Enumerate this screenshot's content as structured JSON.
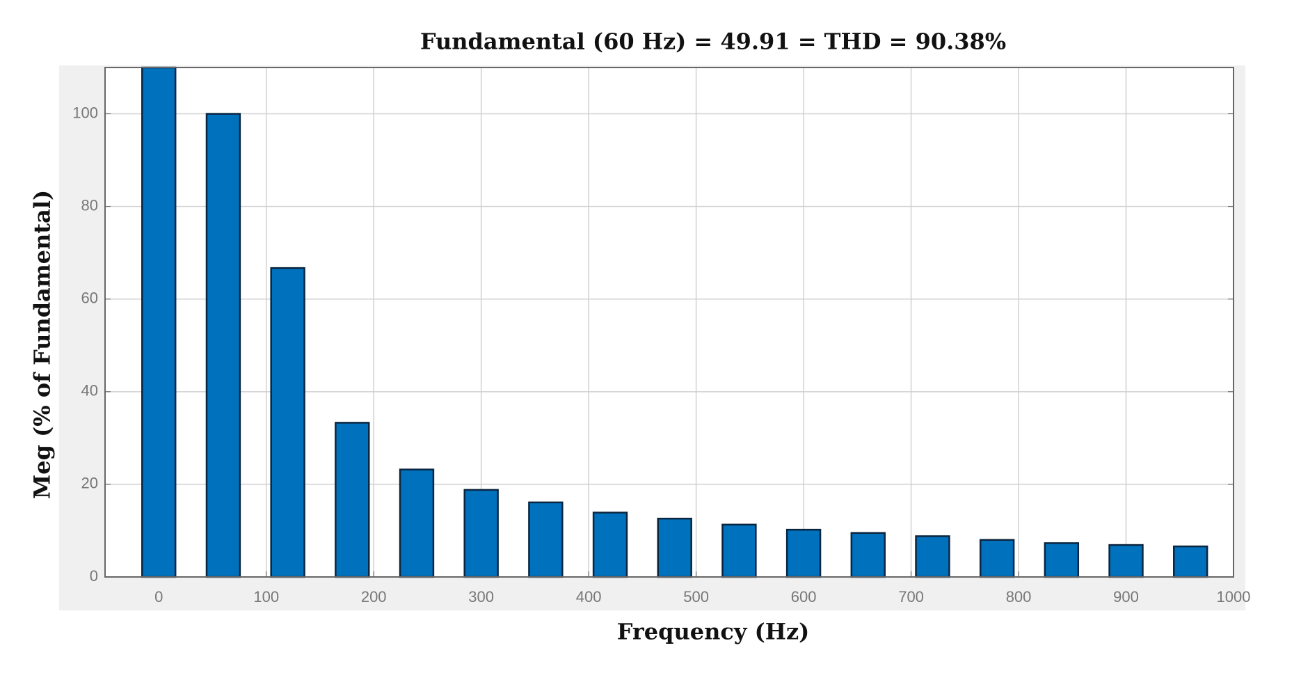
{
  "chart_data": {
    "type": "bar",
    "title": "Fundamental (60 Hz) = 49.91 = THD = 90.38%",
    "xlabel": "Frequency (Hz)",
    "ylabel": "Meg (% of Fundamental)",
    "x": [
      0,
      60,
      120,
      180,
      240,
      300,
      360,
      420,
      480,
      540,
      600,
      660,
      720,
      780,
      840,
      900,
      960
    ],
    "values": [
      110,
      100,
      66.7,
      33.3,
      23.2,
      18.8,
      16.1,
      13.9,
      12.6,
      11.3,
      10.2,
      9.5,
      8.8,
      8.0,
      7.3,
      6.9,
      6.6
    ],
    "bar_width": 31,
    "color": "#0072bd",
    "xlim": [
      -50,
      1000
    ],
    "xticks": [
      0,
      100,
      200,
      300,
      400,
      500,
      600,
      700,
      800,
      900,
      1000
    ],
    "ylim": [
      0,
      110
    ],
    "yticks": [
      0,
      20,
      40,
      60,
      80,
      100
    ],
    "grid": true
  }
}
